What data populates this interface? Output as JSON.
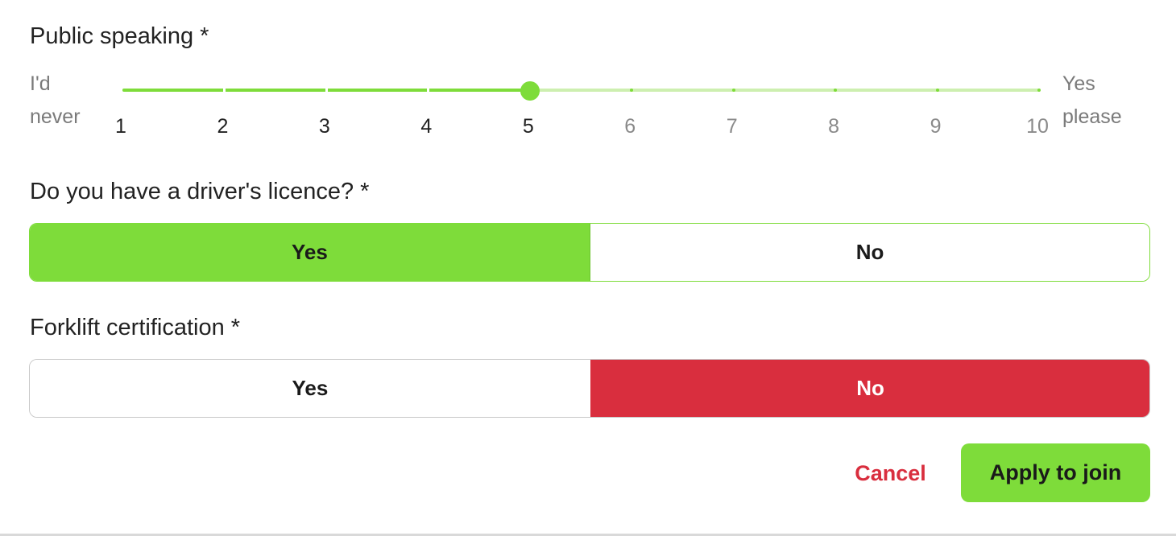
{
  "public_speaking": {
    "label": "Public speaking *",
    "min_label_line1": "I'd",
    "min_label_line2": "never",
    "max_label_line1": "Yes",
    "max_label_line2": "please",
    "value": 5,
    "min": 1,
    "max": 10,
    "ticks": [
      "1",
      "2",
      "3",
      "4",
      "5",
      "6",
      "7",
      "8",
      "9",
      "10"
    ],
    "accent_color": "#7edc3a"
  },
  "drivers_licence": {
    "label": "Do you have a driver's licence? *",
    "yes_label": "Yes",
    "no_label": "No",
    "selected": "Yes",
    "selected_color": "#7edc3a"
  },
  "forklift": {
    "label": "Forklift certification *",
    "yes_label": "Yes",
    "no_label": "No",
    "selected": "No",
    "selected_color": "#d92e3e"
  },
  "actions": {
    "cancel_label": "Cancel",
    "apply_label": "Apply to join",
    "cancel_color": "#d92e3e",
    "apply_color": "#7edc3a"
  }
}
